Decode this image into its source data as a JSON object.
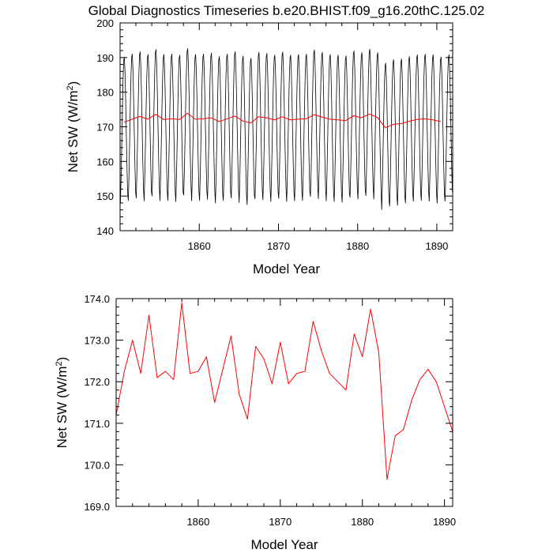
{
  "chart_data": [
    {
      "type": "line",
      "title": "Global Diagnostics Timeseries b.e20.BHIST.f09_g16.20thC.125.02",
      "xlabel": "Model Year",
      "ylabel": "Net SW",
      "ylabel_unit": "(W/m",
      "ylabel_sup": "2",
      "ylabel_close": ")",
      "xlim": [
        1850,
        1892
      ],
      "ylim": [
        140,
        200
      ],
      "xticks": [
        1860,
        1870,
        1880,
        1890
      ],
      "yticks": [
        140,
        150,
        160,
        170,
        180,
        190,
        200
      ],
      "xtick_labels": [
        "1860",
        "1870",
        "1880",
        "1890"
      ],
      "ytick_labels": [
        "140",
        "150",
        "160",
        "170",
        "180",
        "190",
        "200"
      ],
      "grid": false,
      "series": [
        {
          "color": "#000000",
          "start_x": 1850.04,
          "step": 0.0833333,
          "monthly_pattern": [
            148.5,
            155.8,
            165.2,
            175.5,
            184.2,
            189.8,
            190.8,
            186.5,
            178.3,
            168.4,
            158.9,
            151.2
          ],
          "yearly_offsets": [
            -0.7,
            0.2,
            0.9,
            0.1,
            1.5,
            0.1,
            0.2,
            -0.1,
            1.8,
            0.1,
            0.2,
            0.5,
            -0.5,
            0.2,
            0.9,
            -0.4,
            -1.0,
            0.7,
            0.4,
            -0.1,
            0.8,
            -0.1,
            0.1,
            0.2,
            1.4,
            0.7,
            0.1,
            -0.1,
            -0.3,
            1.1,
            0.6,
            1.6,
            0.6,
            -2.4,
            -1.4,
            -1.2,
            -0.5,
            0.0,
            0.2,
            0.0,
            -0.6,
            0.0
          ]
        },
        {
          "color": "#ff0000",
          "x": [
            1850.5,
            1851.5,
            1852.5,
            1853.5,
            1854.5,
            1855.5,
            1856.5,
            1857.5,
            1858.5,
            1859.5,
            1860.5,
            1861.5,
            1862.5,
            1863.5,
            1864.5,
            1865.5,
            1866.5,
            1867.5,
            1868.5,
            1869.5,
            1870.5,
            1871.5,
            1872.5,
            1873.5,
            1874.5,
            1875.5,
            1876.5,
            1877.5,
            1878.5,
            1879.5,
            1880.5,
            1881.5,
            1882.5,
            1883.5,
            1884.5,
            1885.5,
            1886.5,
            1887.5,
            1888.5,
            1889.5,
            1890.5
          ],
          "y": [
            171.3,
            172.2,
            173.0,
            172.2,
            173.6,
            172.1,
            172.3,
            172.1,
            173.9,
            172.2,
            172.3,
            172.6,
            171.5,
            172.3,
            173.1,
            171.7,
            171.1,
            172.9,
            172.6,
            172.0,
            172.9,
            172.0,
            172.2,
            172.3,
            173.5,
            172.8,
            172.2,
            172.0,
            171.8,
            173.2,
            172.6,
            173.7,
            172.7,
            169.7,
            170.7,
            170.9,
            171.6,
            172.1,
            172.3,
            172.0,
            171.5
          ]
        }
      ]
    },
    {
      "type": "line",
      "title": "",
      "xlabel": "Model Year",
      "ylabel": "Net SW",
      "ylabel_unit": "(W/m",
      "ylabel_sup": "2",
      "ylabel_close": ")",
      "xlim": [
        1850,
        1891
      ],
      "ylim": [
        169,
        174
      ],
      "xticks": [
        1860,
        1870,
        1880,
        1890
      ],
      "yticks": [
        169,
        170,
        171,
        172,
        173,
        174
      ],
      "xtick_labels": [
        "1860",
        "1870",
        "1880",
        "1890"
      ],
      "ytick_labels": [
        "169.0",
        "170.0",
        "171.0",
        "172.0",
        "173.0",
        "174.0"
      ],
      "grid": false,
      "series": [
        {
          "color": "#ff0000",
          "x": [
            1850.0,
            1851.0,
            1852.0,
            1853.0,
            1854.0,
            1855.0,
            1856.0,
            1857.0,
            1858.0,
            1859.0,
            1860.0,
            1861.0,
            1862.0,
            1863.0,
            1864.0,
            1865.0,
            1866.0,
            1867.0,
            1868.0,
            1869.0,
            1870.0,
            1871.0,
            1872.0,
            1873.0,
            1874.0,
            1875.0,
            1876.0,
            1877.0,
            1878.0,
            1879.0,
            1880.0,
            1881.0,
            1882.0,
            1883.0,
            1884.0,
            1885.0,
            1886.0,
            1887.0,
            1888.0,
            1889.0,
            1890.0,
            1891.0
          ],
          "y": [
            171.2,
            172.25,
            173.0,
            172.2,
            173.6,
            172.1,
            172.25,
            172.05,
            173.9,
            172.2,
            172.25,
            172.6,
            171.5,
            172.3,
            173.1,
            171.7,
            171.1,
            172.85,
            172.55,
            171.95,
            172.95,
            171.95,
            172.2,
            172.25,
            173.45,
            172.75,
            172.2,
            172.0,
            171.8,
            173.15,
            172.6,
            173.75,
            172.7,
            169.65,
            170.7,
            170.85,
            171.55,
            172.05,
            172.3,
            172.0,
            171.4,
            170.8
          ]
        }
      ]
    }
  ]
}
